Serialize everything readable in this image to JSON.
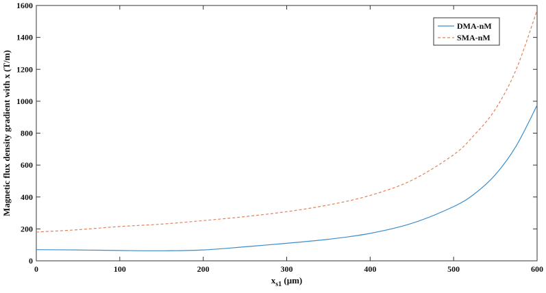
{
  "chart_data": {
    "type": "line",
    "title": "",
    "xlabel": "x",
    "xlabel_sub": "s1",
    "xlabel_units": " (μm)",
    "ylabel": "Magnetic flux density gradient with x (T/m)",
    "xlim": [
      0,
      600
    ],
    "ylim": [
      0,
      1600
    ],
    "xticks": [
      0,
      100,
      200,
      300,
      400,
      500,
      600
    ],
    "yticks": [
      0,
      200,
      400,
      600,
      800,
      1000,
      1200,
      1400,
      1600
    ],
    "grid": false,
    "legend_position": "top-right",
    "series": [
      {
        "name": "DMA-nM",
        "color": "#3a8cc9",
        "dash": "solid",
        "x": [
          0,
          50,
          100,
          150,
          200,
          250,
          300,
          350,
          400,
          450,
          500,
          525,
          550,
          575,
          600
        ],
        "y": [
          70,
          68,
          65,
          63,
          68,
          88,
          110,
          135,
          172,
          235,
          340,
          420,
          540,
          720,
          975
        ]
      },
      {
        "name": "SMA-nM",
        "color": "#e0805a",
        "dash": "dashed",
        "x": [
          0,
          50,
          100,
          150,
          200,
          250,
          300,
          350,
          400,
          450,
          500,
          525,
          550,
          575,
          600
        ],
        "y": [
          180,
          195,
          215,
          230,
          252,
          277,
          308,
          350,
          410,
          505,
          665,
          790,
          950,
          1200,
          1570
        ]
      }
    ]
  }
}
